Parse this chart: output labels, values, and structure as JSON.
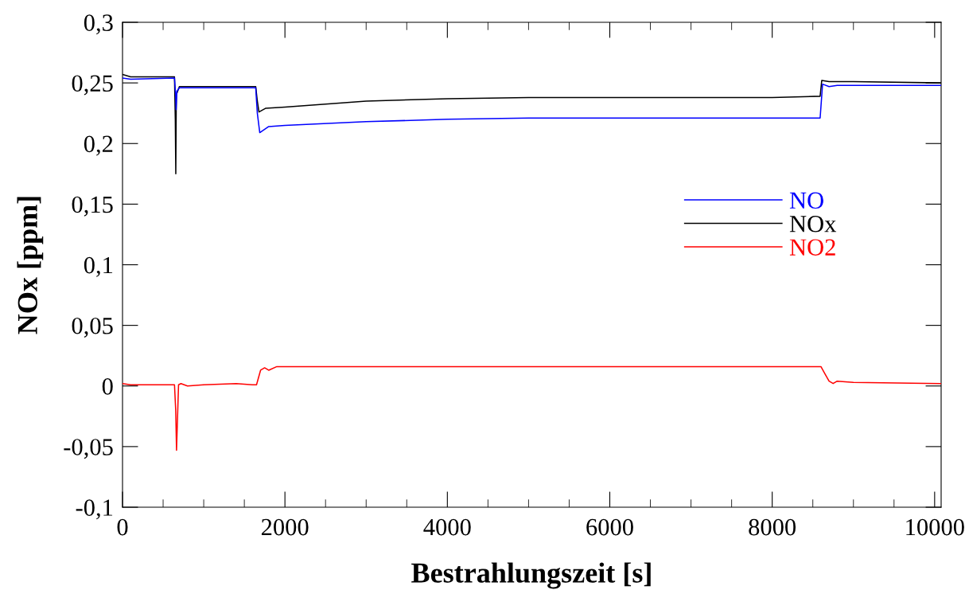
{
  "chart_data": {
    "type": "line",
    "xlabel": "Bestrahlungszeit [s]",
    "ylabel": "NOx [ppm]",
    "xlim": [
      0,
      10080
    ],
    "xticks": [
      0,
      2000,
      4000,
      6000,
      8000,
      10000
    ],
    "ylim": [
      -0.1,
      0.3
    ],
    "yticks": [
      {
        "value": -0.1,
        "label": "-0,1"
      },
      {
        "value": -0.05,
        "label": "-0,05"
      },
      {
        "value": 0,
        "label": "0"
      },
      {
        "value": 0.05,
        "label": "0,05"
      },
      {
        "value": 0.1,
        "label": "0,1"
      },
      {
        "value": 0.15,
        "label": "0,15"
      },
      {
        "value": 0.2,
        "label": "0,2"
      },
      {
        "value": 0.25,
        "label": "0,25"
      },
      {
        "value": 0.3,
        "label": "0,3"
      }
    ],
    "grid": false,
    "legend": "right",
    "marker": "none",
    "line_style": "solid",
    "series": [
      {
        "name": "NO",
        "color": "#0000ff",
        "x": [
          0,
          100,
          640,
          655,
          660,
          670,
          700,
          1000,
          1640,
          1660,
          1690,
          1800,
          2000,
          3000,
          4000,
          5000,
          6000,
          7000,
          8000,
          8590,
          8620,
          8700,
          8800,
          10080
        ],
        "values": [
          0.254,
          0.253,
          0.254,
          0.24,
          0.228,
          0.243,
          0.246,
          0.246,
          0.246,
          0.225,
          0.209,
          0.214,
          0.215,
          0.218,
          0.22,
          0.221,
          0.221,
          0.221,
          0.221,
          0.221,
          0.249,
          0.247,
          0.248,
          0.248
        ]
      },
      {
        "name": "NOx",
        "color": "#000000",
        "x": [
          0,
          100,
          640,
          650,
          656,
          662,
          700,
          1000,
          1640,
          1660,
          1680,
          1760,
          2000,
          3000,
          4000,
          5000,
          6000,
          7000,
          8000,
          8590,
          8610,
          8700,
          9000,
          10080
        ],
        "values": [
          0.257,
          0.255,
          0.255,
          0.22,
          0.175,
          0.24,
          0.247,
          0.247,
          0.247,
          0.235,
          0.226,
          0.229,
          0.23,
          0.235,
          0.237,
          0.238,
          0.238,
          0.238,
          0.238,
          0.239,
          0.252,
          0.251,
          0.251,
          0.25
        ]
      },
      {
        "name": "NO2",
        "color": "#ff0000",
        "x": [
          0,
          100,
          640,
          655,
          665,
          690,
          720,
          800,
          1000,
          1400,
          1600,
          1650,
          1700,
          1750,
          1800,
          1900,
          3000,
          5000,
          7000,
          8600,
          8650,
          8700,
          8750,
          8800,
          9000,
          10080
        ],
        "values": [
          0.002,
          0.001,
          0.001,
          -0.02,
          -0.053,
          0.001,
          0.002,
          0.0,
          0.001,
          0.002,
          0.001,
          0.001,
          0.013,
          0.015,
          0.013,
          0.016,
          0.016,
          0.016,
          0.016,
          0.016,
          0.01,
          0.004,
          0.002,
          0.004,
          0.003,
          0.002
        ]
      }
    ]
  }
}
